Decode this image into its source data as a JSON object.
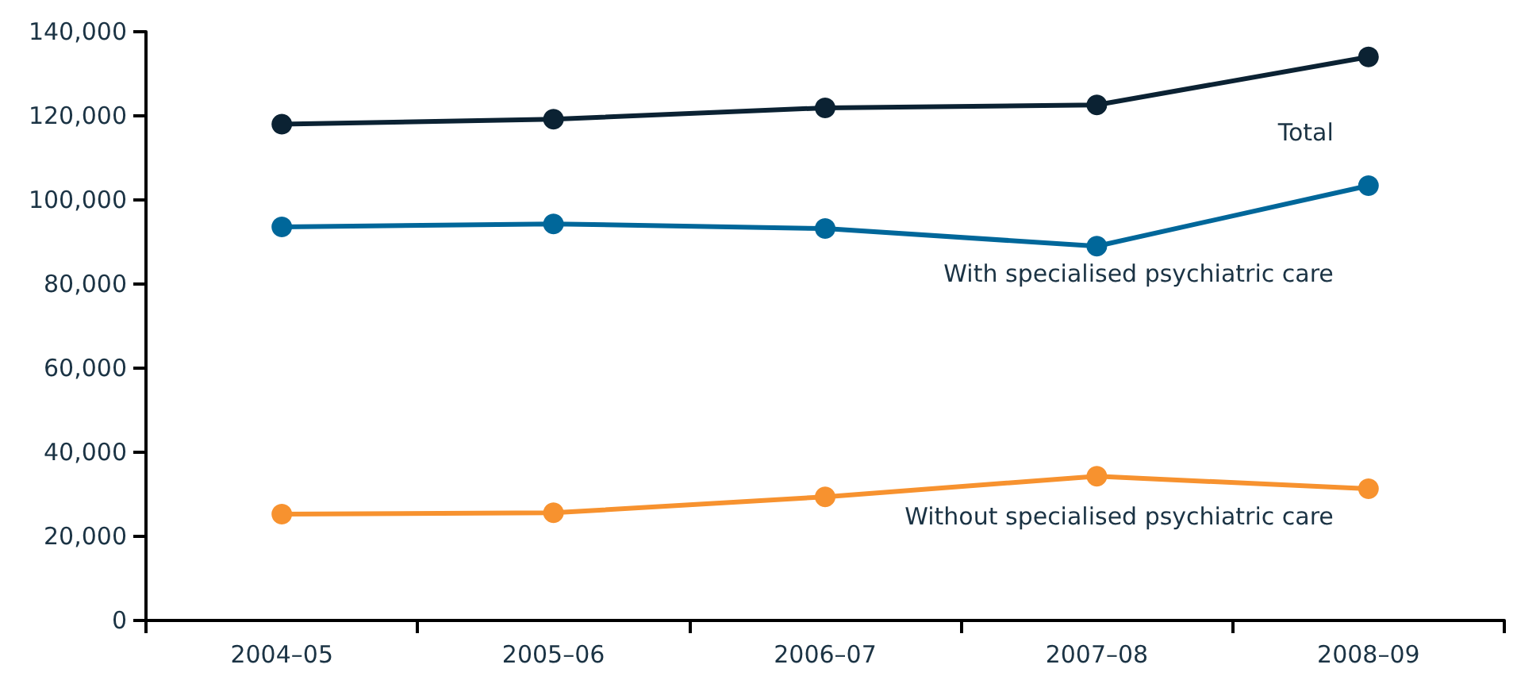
{
  "chart_data": {
    "type": "line",
    "categories": [
      "2004–05",
      "2005–06",
      "2006–07",
      "2007–08",
      "2008–09"
    ],
    "series": [
      {
        "name": "Total",
        "color": "#0b2233",
        "values": [
          118000,
          119200,
          121900,
          122600,
          134000
        ]
      },
      {
        "name": "With specialised psychiatric care",
        "color": "#00679a",
        "values": [
          93600,
          94300,
          93200,
          89000,
          103400
        ]
      },
      {
        "name": "Without specialised psychiatric care",
        "color": "#f7922f",
        "values": [
          25300,
          25600,
          29400,
          34300,
          31300
        ]
      }
    ],
    "ylim": [
      0,
      140000
    ],
    "yticks": [
      0,
      {
        "value": 20000,
        "label": "20,000"
      },
      {
        "value": 40000,
        "label": "40,000"
      },
      {
        "value": 60000,
        "label": "60,000"
      },
      {
        "value": 80000,
        "label": "80,000"
      },
      {
        "value": 100000,
        "label": "100,000"
      },
      {
        "value": 120000,
        "label": "120,000"
      },
      {
        "value": 140000,
        "label": "140,000"
      }
    ],
    "grid": false,
    "legend": false,
    "marker": "circle",
    "line_style": "solid"
  }
}
